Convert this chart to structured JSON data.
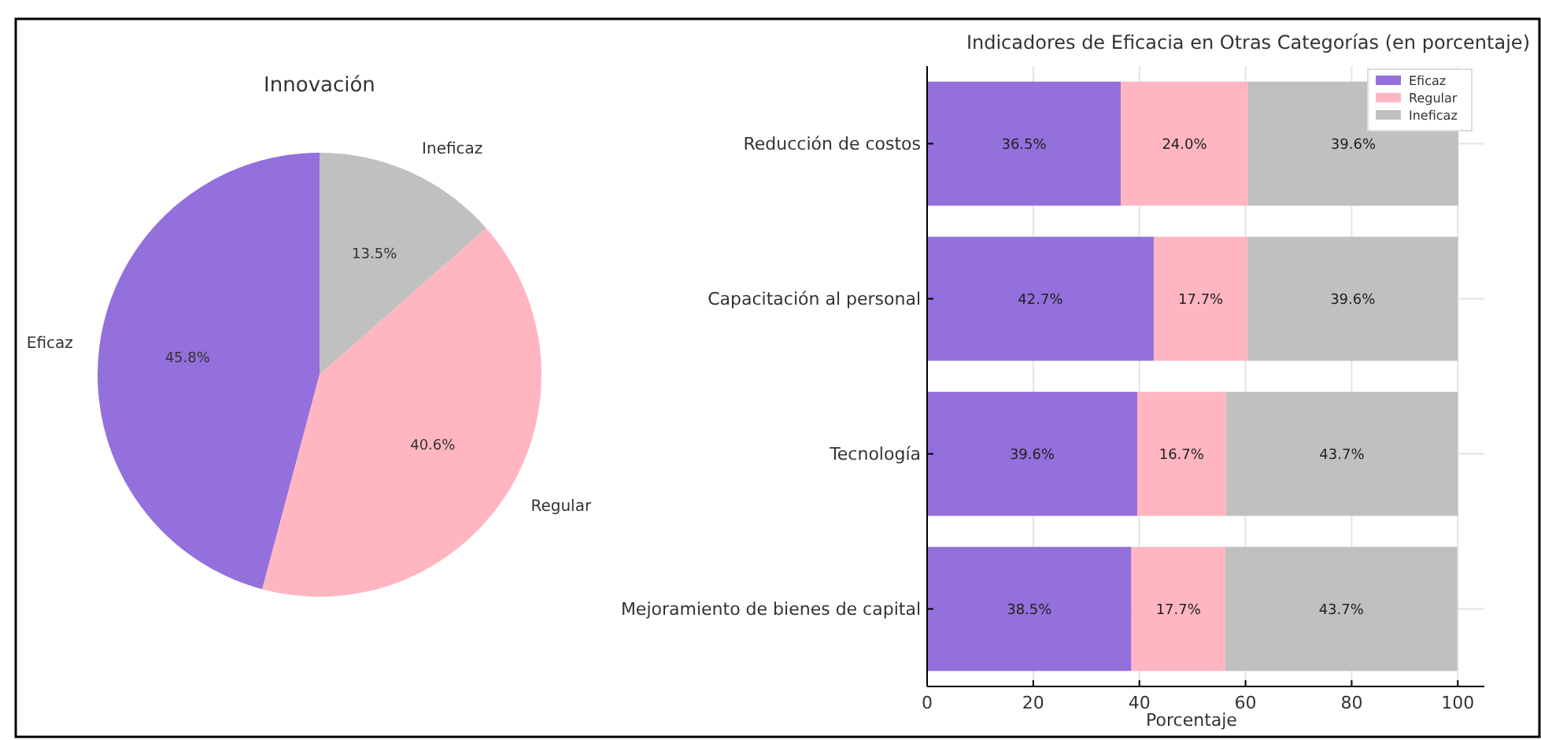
{
  "chart_data": [
    {
      "type": "pie",
      "title": "Innovación",
      "categories": [
        "Eficaz",
        "Regular",
        "Ineficaz"
      ],
      "values": [
        45.8,
        40.6,
        13.5
      ],
      "colors": [
        "#9370db",
        "#ffb6c1",
        "#c0c0c0"
      ],
      "value_labels": [
        "45.8%",
        "40.6%",
        "13.5%"
      ]
    },
    {
      "type": "bar",
      "orientation": "horizontal",
      "stacked": true,
      "title": "Indicadores de Eficacia en Otras Categorías (en porcentaje)",
      "xlabel": "Porcentaje",
      "categories": [
        "Reducción de costos",
        "Capacitación al personal",
        "Tecnología",
        "Mejoramiento de bienes de capital"
      ],
      "xlim": [
        0,
        105
      ],
      "xticks": [
        0,
        20,
        40,
        60,
        80,
        100
      ],
      "grid": true,
      "legend": "top right",
      "series": [
        {
          "name": "Eficaz",
          "color": "#9370db",
          "values": [
            36.5,
            42.7,
            39.6,
            38.5
          ],
          "value_labels": [
            "36.5%",
            "42.7%",
            "39.6%",
            "38.5%"
          ]
        },
        {
          "name": "Regular",
          "color": "#ffb6c1",
          "values": [
            24.0,
            17.7,
            16.7,
            17.7
          ],
          "value_labels": [
            "24.0%",
            "17.7%",
            "16.7%",
            "17.7%"
          ]
        },
        {
          "name": "Ineficaz",
          "color": "#c0c0c0",
          "values": [
            39.6,
            39.6,
            43.7,
            43.7
          ],
          "value_labels": [
            "39.6%",
            "39.6%",
            "43.7%",
            "43.7%"
          ]
        }
      ]
    }
  ]
}
